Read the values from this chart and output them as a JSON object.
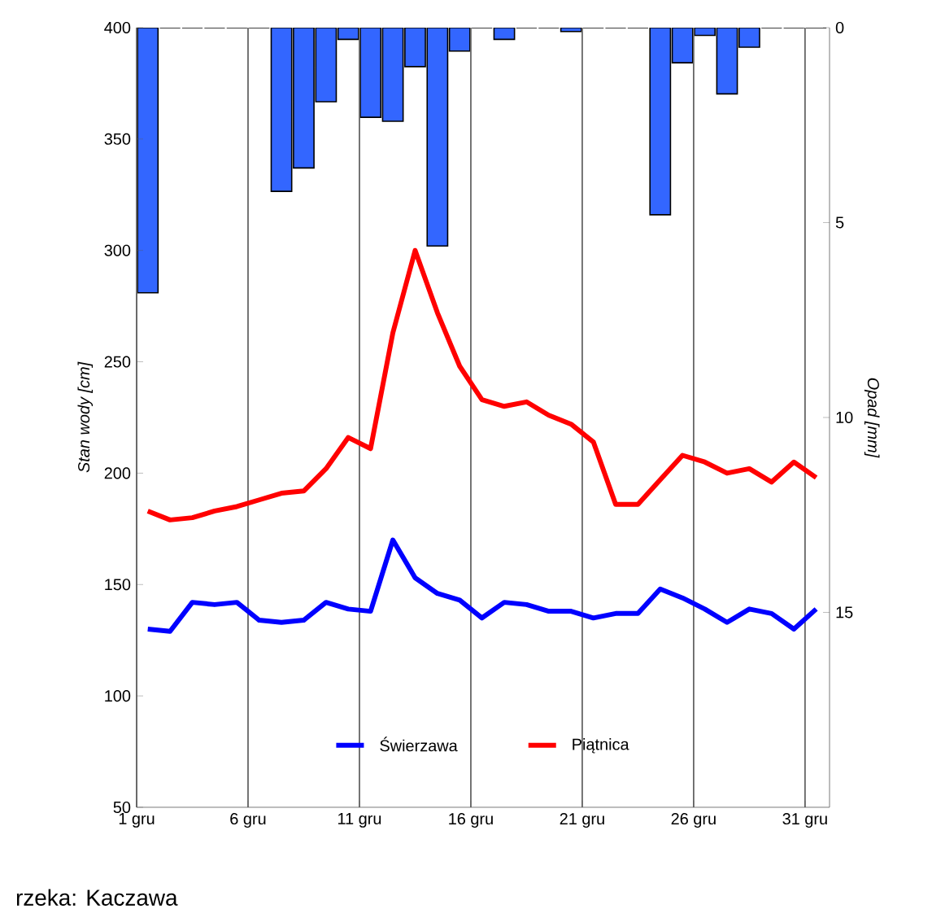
{
  "chart_data": {
    "type": "line",
    "ylabel": "Stan wody [cm]",
    "y2label": "Opad [mm]",
    "x": [
      1,
      2,
      3,
      4,
      5,
      6,
      7,
      8,
      9,
      10,
      11,
      12,
      13,
      14,
      15,
      16,
      17,
      18,
      19,
      20,
      21,
      22,
      23,
      24,
      25,
      26,
      27,
      28,
      29,
      30,
      31
    ],
    "xlim": [
      0.5,
      31.6
    ],
    "xticks": [
      {
        "value": 0.5,
        "label": "1 gru"
      },
      {
        "value": 5.5,
        "label": "6 gru"
      },
      {
        "value": 10.5,
        "label": "11 gru"
      },
      {
        "value": 15.5,
        "label": "16 gru"
      },
      {
        "value": 20.5,
        "label": "21 gru"
      },
      {
        "value": 25.5,
        "label": "26 gru"
      },
      {
        "value": 30.5,
        "label": "31 gru"
      }
    ],
    "ylim": [
      50,
      400
    ],
    "yticks": [
      50,
      100,
      150,
      200,
      250,
      300,
      350,
      400
    ],
    "y2lim": [
      20,
      0
    ],
    "y2ticks": [
      0,
      5,
      10,
      15
    ],
    "series": [
      {
        "type": "bar",
        "axis": "y2",
        "color": "#3366ff",
        "values": [
          6.8,
          0,
          0,
          0,
          0,
          0,
          4.2,
          3.6,
          1.9,
          0.3,
          2.3,
          2.4,
          1.0,
          5.6,
          0.6,
          0,
          0.3,
          0,
          0,
          0.1,
          0,
          0,
          0,
          4.8,
          0.9,
          0.2,
          1.7,
          0.5,
          0,
          0,
          0
        ]
      },
      {
        "name": "Świerzawa",
        "color": "#0000ff",
        "values": [
          130,
          129,
          142,
          141,
          142,
          134,
          133,
          134,
          142,
          139,
          138,
          170,
          153,
          146,
          143,
          135,
          142,
          141,
          138,
          138,
          135,
          137,
          137,
          148,
          144,
          139,
          133,
          139,
          137,
          130,
          139
        ]
      },
      {
        "name": "Piątnica",
        "color": "#ff0000",
        "values": [
          183,
          179,
          180,
          183,
          185,
          188,
          191,
          192,
          202,
          216,
          211,
          263,
          300,
          272,
          248,
          233,
          230,
          232,
          226,
          222,
          214,
          186,
          186,
          197,
          208,
          205,
          200,
          202,
          196,
          205,
          198
        ]
      }
    ],
    "grid": "x",
    "legend": "bottom",
    "annotations": [
      "rzeka: Kaczawa"
    ]
  }
}
